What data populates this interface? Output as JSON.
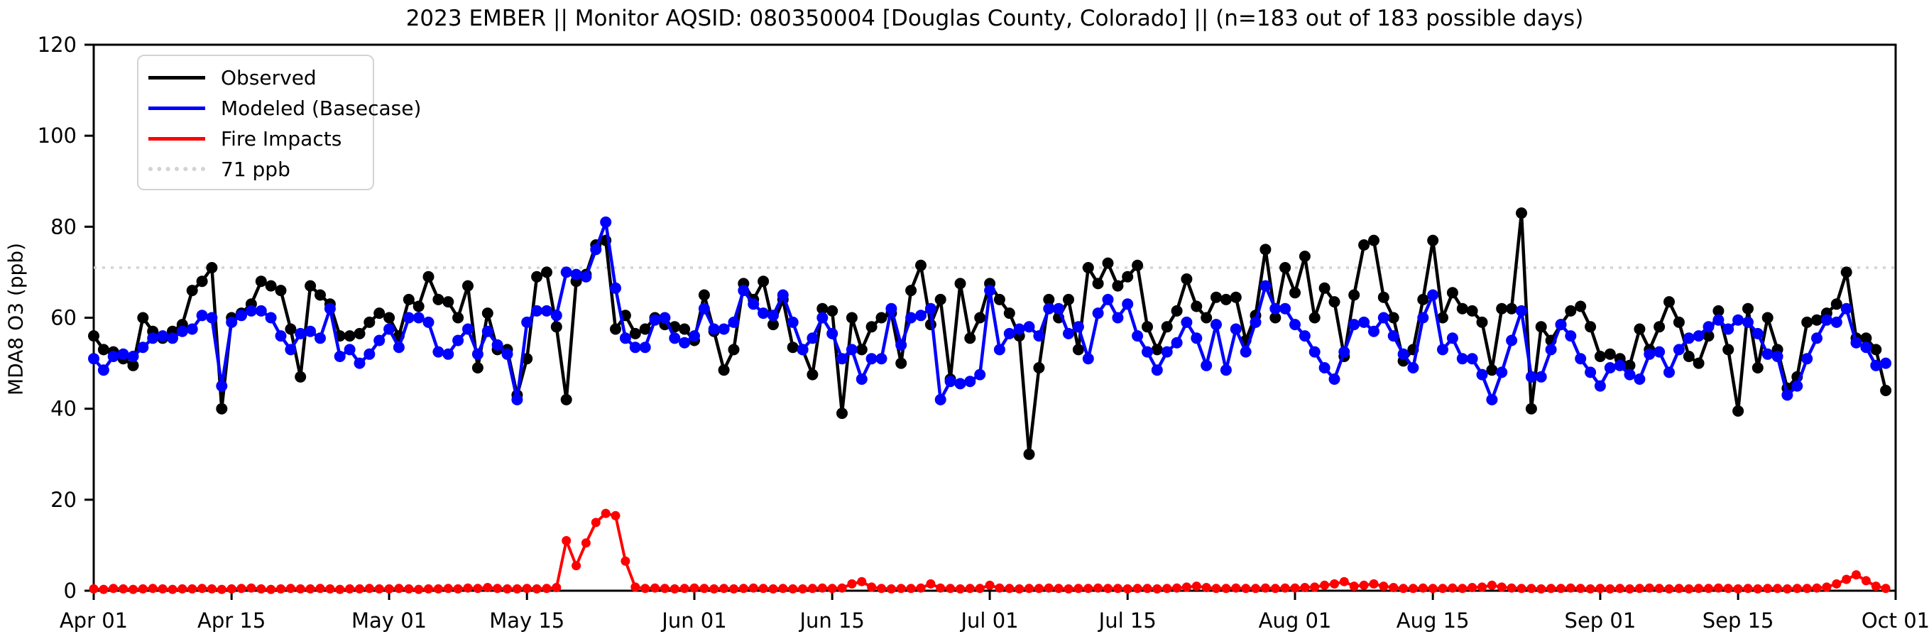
{
  "chart_data": {
    "type": "line",
    "title": "2023 EMBER || Monitor AQSID: 080350004 [Douglas County, Colorado] || (n=183 out of 183 possible days)",
    "xlabel": "",
    "ylabel": "MDA8 O3 (ppb)",
    "ylim": [
      0,
      120
    ],
    "yticks": [
      0,
      20,
      40,
      60,
      80,
      100,
      120
    ],
    "x_range_days": 183,
    "xticks": [
      {
        "label": "Apr 01",
        "day": 0
      },
      {
        "label": "Apr 15",
        "day": 14
      },
      {
        "label": "May 01",
        "day": 30
      },
      {
        "label": "May 15",
        "day": 44
      },
      {
        "label": "Jun 01",
        "day": 61
      },
      {
        "label": "Jun 15",
        "day": 75
      },
      {
        "label": "Jul 01",
        "day": 91
      },
      {
        "label": "Jul 15",
        "day": 105
      },
      {
        "label": "Aug 01",
        "day": 122
      },
      {
        "label": "Aug 15",
        "day": 136
      },
      {
        "label": "Sep 01",
        "day": 153
      },
      {
        "label": "Sep 15",
        "day": 167
      },
      {
        "label": "Oct 01",
        "day": 183
      }
    ],
    "grid": false,
    "legend_position": "upper-left",
    "threshold": {
      "label": "71 ppb",
      "value": 71,
      "color": "#d3d3d3"
    },
    "series": [
      {
        "name": "Observed",
        "color": "#000000",
        "values": [
          56,
          53,
          52.5,
          51,
          49.5,
          60,
          57,
          55.5,
          57,
          58.5,
          66,
          68,
          71,
          40,
          60,
          61,
          63,
          68,
          67,
          66,
          57.5,
          47,
          67,
          65,
          63,
          56,
          56,
          56.5,
          59,
          61,
          60,
          56,
          64,
          62.5,
          69,
          64,
          63.5,
          60,
          67,
          49,
          61,
          53,
          53,
          43,
          51,
          69,
          70,
          58,
          42,
          68,
          69.5,
          76,
          77,
          57.5,
          60.5,
          56.5,
          57.5,
          60,
          58.5,
          58,
          57.5,
          55,
          65,
          57,
          48.5,
          53,
          67.5,
          64,
          68,
          58.5,
          64,
          53.5,
          53,
          47.5,
          62,
          61.5,
          39,
          60,
          53,
          58,
          60,
          61,
          50,
          66,
          71.5,
          58.5,
          64,
          46.5,
          67.5,
          55.5,
          60,
          67.5,
          64,
          61,
          56,
          30,
          49,
          64,
          60,
          64,
          53,
          71,
          67.5,
          72,
          67,
          69,
          71.5,
          58,
          53,
          58,
          61.5,
          68.5,
          62.5,
          60,
          64.5,
          64,
          64.5,
          55,
          60.5,
          75,
          60,
          71,
          65.5,
          73.5,
          60,
          66.5,
          63.5,
          51.5,
          65,
          76,
          77,
          64.5,
          60,
          50.5,
          53,
          64,
          77,
          60,
          65.5,
          62,
          61.5,
          59,
          48.5,
          62,
          62,
          83,
          40,
          58,
          55,
          58.5,
          61.5,
          62.5,
          58,
          51.5,
          52,
          51,
          49.5,
          57.5,
          53,
          58,
          63.5,
          59,
          51.5,
          50,
          56,
          61.5,
          53,
          39.5,
          62,
          49,
          60,
          53,
          44.5,
          47,
          59,
          59.5,
          61,
          63,
          70,
          55.5,
          55.5,
          53,
          44
        ]
      },
      {
        "name": "Modeled (Basecase)",
        "color": "#0000ff",
        "values": [
          51,
          48.5,
          51.5,
          52,
          51.5,
          53.5,
          55.5,
          56,
          55.5,
          57,
          57.5,
          60.5,
          60,
          45,
          59,
          60.5,
          61.5,
          61.5,
          60,
          56,
          53,
          56.5,
          57,
          55.5,
          62,
          51.5,
          53,
          50,
          52,
          55,
          57.5,
          53.5,
          60,
          60,
          59,
          52.5,
          52,
          55,
          57.5,
          52,
          57,
          54,
          52,
          42,
          59,
          61.5,
          61.5,
          60.5,
          70,
          69.5,
          69,
          75,
          81,
          66.5,
          55.5,
          53.5,
          53.5,
          59.5,
          60,
          55.5,
          54.5,
          56,
          62,
          57.5,
          57.5,
          59,
          66,
          63,
          61,
          60.5,
          65,
          59,
          53,
          55.5,
          60,
          56.5,
          51,
          53,
          46.5,
          51,
          51,
          62,
          54,
          60,
          60.5,
          62,
          42,
          46,
          45.5,
          46,
          47.5,
          66,
          53,
          56.5,
          57.5,
          58,
          56,
          62,
          62,
          56.5,
          58,
          51,
          61,
          64,
          60,
          63,
          56,
          52.5,
          48.5,
          52.5,
          54.5,
          59,
          55.5,
          49.5,
          58.5,
          48.5,
          57.5,
          52.5,
          59,
          67,
          62,
          62,
          58.5,
          56,
          52.5,
          49,
          46.5,
          52.5,
          58.5,
          59,
          57,
          60,
          56,
          52,
          49,
          60,
          65,
          53,
          55.5,
          51,
          51,
          47.5,
          42,
          48,
          55,
          61.5,
          47,
          47,
          53,
          58.5,
          56,
          51,
          48,
          45,
          49,
          49.5,
          47.5,
          46.5,
          52,
          52.5,
          48,
          53,
          55.5,
          56,
          58,
          59.5,
          57.5,
          59.5,
          59,
          56.5,
          52,
          51.5,
          43,
          45,
          51,
          55.5,
          59.5,
          59,
          62,
          54.5,
          53.5,
          49.5,
          50
        ]
      },
      {
        "name": "Fire Impacts",
        "color": "#ff0000",
        "values": [
          0.4,
          0.3,
          0.5,
          0.4,
          0.3,
          0.4,
          0.5,
          0.4,
          0.3,
          0.4,
          0.4,
          0.5,
          0.4,
          0.3,
          0.4,
          0.5,
          0.6,
          0.4,
          0.3,
          0.4,
          0.5,
          0.4,
          0.4,
          0.5,
          0.4,
          0.3,
          0.4,
          0.4,
          0.5,
          0.4,
          0.4,
          0.5,
          0.4,
          0.3,
          0.4,
          0.4,
          0.5,
          0.4,
          0.6,
          0.5,
          0.7,
          0.5,
          0.4,
          0.4,
          0.5,
          0.4,
          0.5,
          0.7,
          11,
          5.5,
          10.5,
          15,
          17,
          16.5,
          6.5,
          0.8,
          0.5,
          0.6,
          0.5,
          0.4,
          0.5,
          0.6,
          0.5,
          0.4,
          0.5,
          0.4,
          0.5,
          0.6,
          0.5,
          0.4,
          0.5,
          0.4,
          0.4,
          0.5,
          0.6,
          0.5,
          0.6,
          1.5,
          2.0,
          0.8,
          0.5,
          0.4,
          0.5,
          0.5,
          0.6,
          1.5,
          0.6,
          0.5,
          0.4,
          0.5,
          0.5,
          1.2,
          0.6,
          0.5,
          0.4,
          0.5,
          0.5,
          0.6,
          0.5,
          0.4,
          0.5,
          0.5,
          0.6,
          0.5,
          0.5,
          0.4,
          0.5,
          0.5,
          0.4,
          0.5,
          0.6,
          0.8,
          1.0,
          0.7,
          0.5,
          0.5,
          0.6,
          0.5,
          0.5,
          0.6,
          0.5,
          0.6,
          0.6,
          0.7,
          0.8,
          1.2,
          1.5,
          2.0,
          1.0,
          1.2,
          1.5,
          1.0,
          0.7,
          0.5,
          0.5,
          0.6,
          0.5,
          0.5,
          0.6,
          0.5,
          0.7,
          0.8,
          1.2,
          0.8,
          0.6,
          0.5,
          0.5,
          0.4,
          0.5,
          0.5,
          0.6,
          0.5,
          0.4,
          0.5,
          0.4,
          0.5,
          0.4,
          0.5,
          0.6,
          0.5,
          0.4,
          0.5,
          0.4,
          0.5,
          0.5,
          0.6,
          0.5,
          0.4,
          0.5,
          0.4,
          0.5,
          0.5,
          0.4,
          0.5,
          0.5,
          0.6,
          0.8,
          1.5,
          2.5,
          3.5,
          2.2,
          1.0,
          0.5
        ]
      }
    ]
  },
  "legend": {
    "observed_label": "Observed",
    "modeled_label": "Modeled (Basecase)",
    "fire_label": "Fire Impacts",
    "threshold_label": "71 ppb"
  }
}
